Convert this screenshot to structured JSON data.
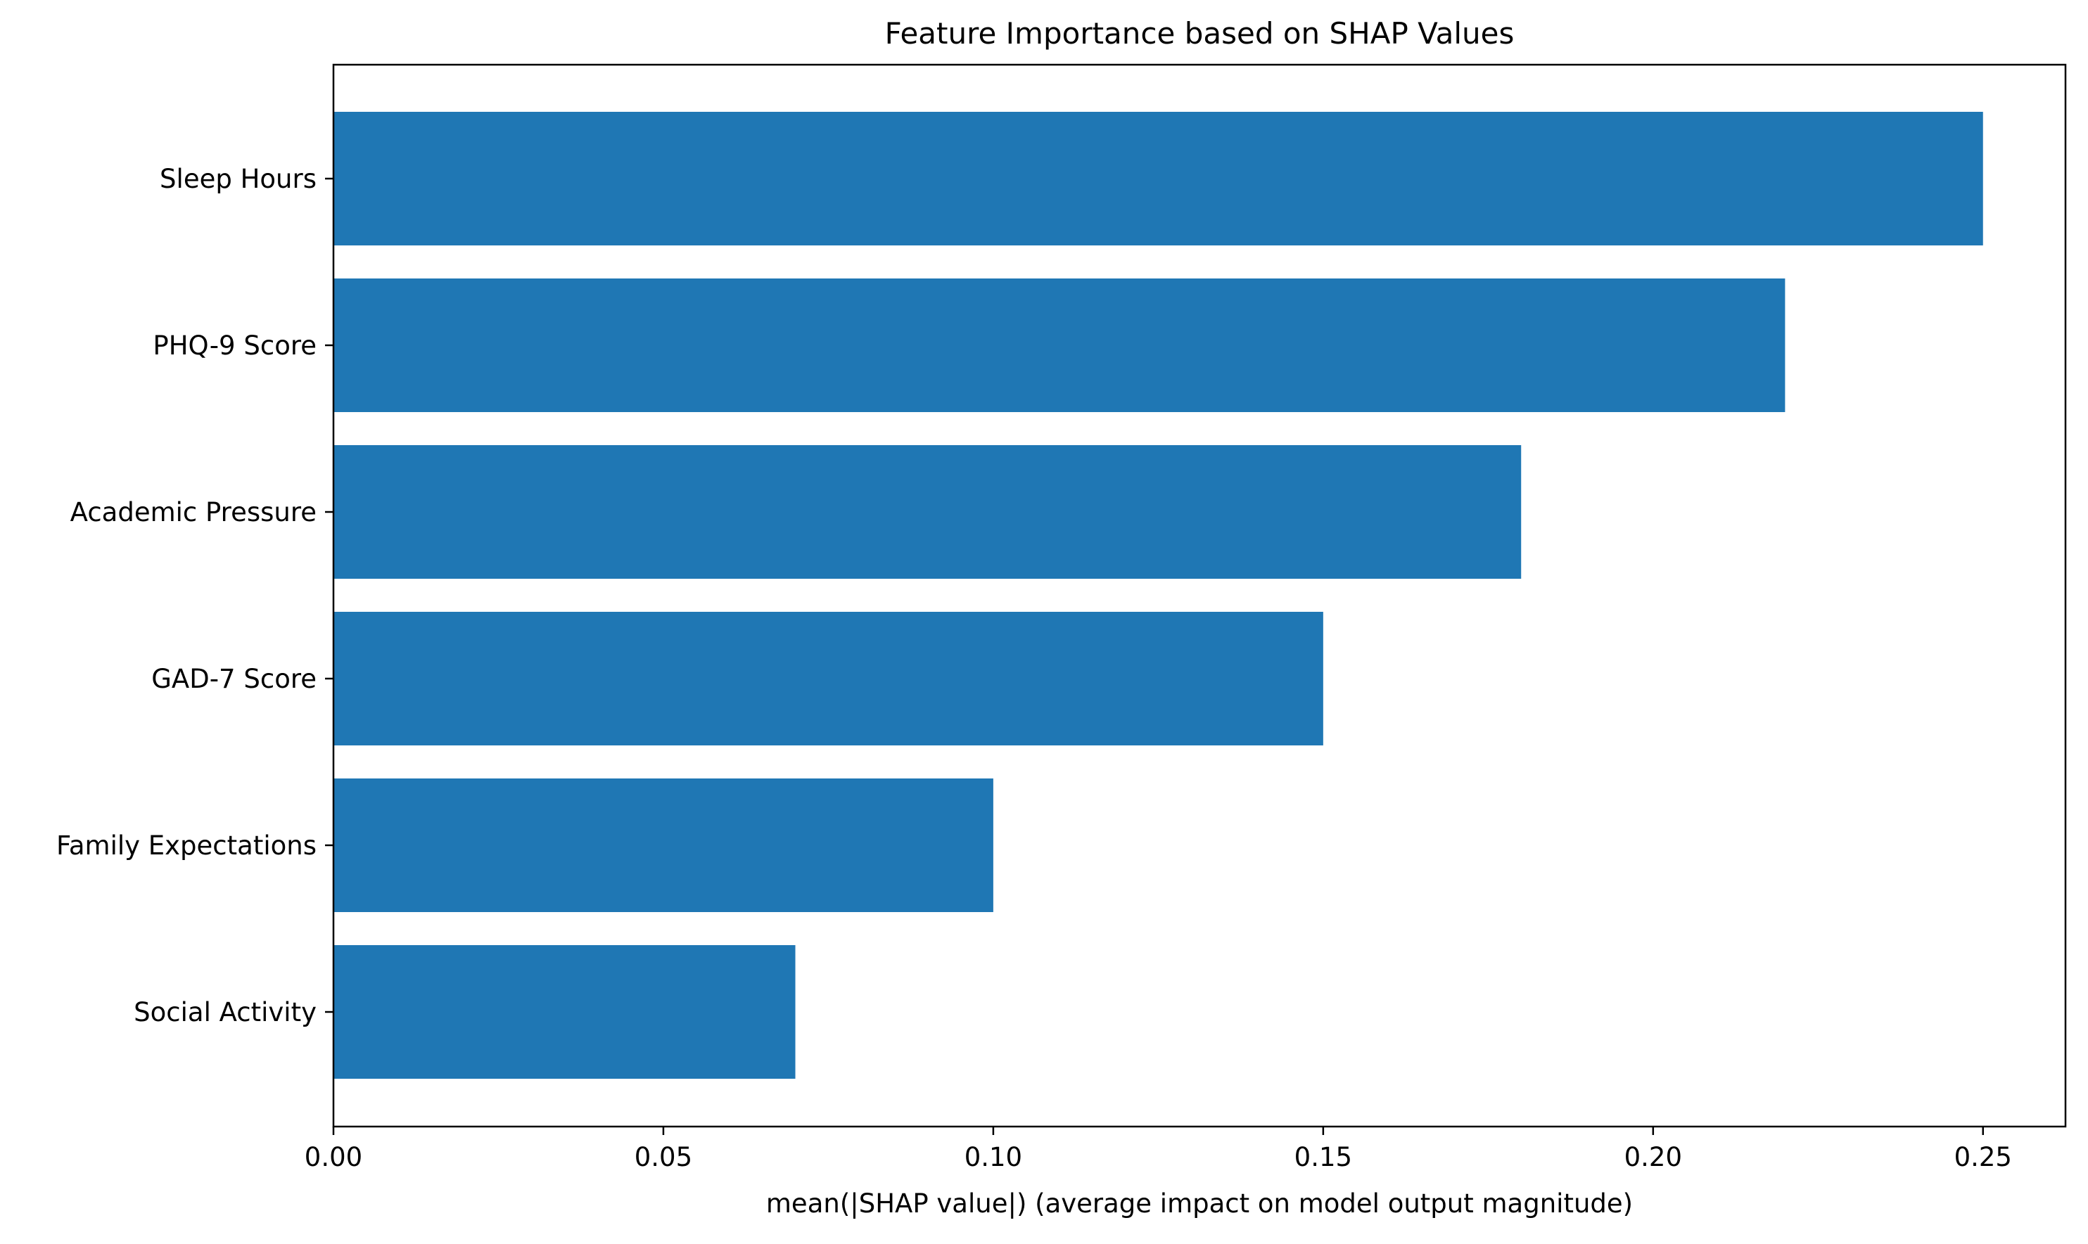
{
  "chart_data": {
    "type": "bar",
    "orientation": "horizontal",
    "title": "Feature Importance based on SHAP Values",
    "xlabel": "mean(|SHAP value|) (average impact on model output magnitude)",
    "ylabel": "",
    "categories": [
      "Sleep Hours",
      "PHQ-9 Score",
      "Academic Pressure",
      "GAD-7 Score",
      "Family Expectations",
      "Social Activity"
    ],
    "values": [
      0.25,
      0.22,
      0.18,
      0.15,
      0.1,
      0.07
    ],
    "xlim": [
      0,
      0.2625
    ],
    "xticks": [
      0.0,
      0.05,
      0.1,
      0.15,
      0.2,
      0.25
    ],
    "xtick_labels": [
      "0.00",
      "0.05",
      "0.10",
      "0.15",
      "0.20",
      "0.25"
    ],
    "bar_color": "#1f77b4",
    "grid": false,
    "legend": false
  }
}
